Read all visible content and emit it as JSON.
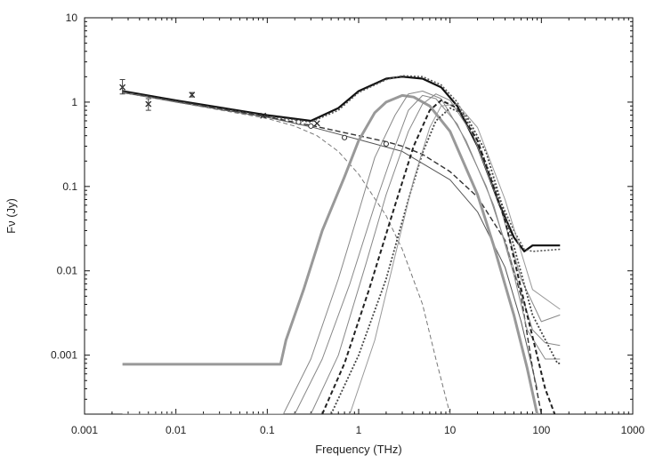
{
  "chart_data": {
    "type": "line",
    "title": "",
    "xlabel": "Frequency (THz)",
    "ylabel": "Fν (Jy)",
    "x_scale": "log",
    "y_scale": "log",
    "xlim": [
      0.001,
      1000
    ],
    "ylim": [
      0.0002,
      10
    ],
    "grid": false,
    "legend": "none",
    "x_ticks": [
      {
        "value": 0.001,
        "label": "0.001"
      },
      {
        "value": 0.01,
        "label": "0.01"
      },
      {
        "value": 0.1,
        "label": "0.1"
      },
      {
        "value": 1,
        "label": "1"
      },
      {
        "value": 10,
        "label": "10"
      },
      {
        "value": 100,
        "label": "100"
      },
      {
        "value": 1000,
        "label": "1000"
      }
    ],
    "y_ticks": [
      {
        "value": 0.001,
        "label": "0.001"
      },
      {
        "value": 0.01,
        "label": "0.01"
      },
      {
        "value": 0.1,
        "label": "0.1"
      },
      {
        "value": 1,
        "label": "1"
      },
      {
        "value": 10,
        "label": "10"
      }
    ],
    "observations": {
      "crosses": [
        {
          "x": 0.0026,
          "y": 1.5,
          "err": [
            1.25,
            1.85
          ]
        },
        {
          "x": 0.005,
          "y": 0.95,
          "err": [
            0.8,
            1.1
          ]
        },
        {
          "x": 0.015,
          "y": 1.22,
          "err": [
            1.15,
            1.3
          ]
        },
        {
          "x": 0.09,
          "y": 0.69
        },
        {
          "x": 0.35,
          "y": 0.56
        }
      ],
      "circles": [
        {
          "x": 0.22,
          "y": 0.58
        },
        {
          "x": 0.3,
          "y": 0.52
        },
        {
          "x": 0.7,
          "y": 0.38
        },
        {
          "x": 2.0,
          "y": 0.32
        }
      ]
    },
    "series": [
      {
        "style": "solid-thick",
        "color": "#111111",
        "points": [
          [
            0.0026,
            1.35
          ],
          [
            0.01,
            1.05
          ],
          [
            0.1,
            0.7
          ],
          [
            0.3,
            0.6
          ],
          [
            0.6,
            0.85
          ],
          [
            1,
            1.35
          ],
          [
            2,
            1.9
          ],
          [
            3,
            2.0
          ],
          [
            5,
            1.9
          ],
          [
            8,
            1.5
          ],
          [
            12,
            0.9
          ],
          [
            20,
            0.3
          ],
          [
            35,
            0.06
          ],
          [
            50,
            0.025
          ],
          [
            65,
            0.017
          ],
          [
            80,
            0.02
          ],
          [
            160,
            0.02
          ]
        ]
      },
      {
        "style": "dotted",
        "color": "#555555",
        "points": [
          [
            0.0026,
            1.3
          ],
          [
            0.01,
            1.02
          ],
          [
            0.1,
            0.68
          ],
          [
            0.3,
            0.58
          ],
          [
            0.6,
            0.8
          ],
          [
            1,
            1.3
          ],
          [
            2,
            1.85
          ],
          [
            3,
            2.05
          ],
          [
            5,
            2.0
          ],
          [
            8,
            1.6
          ],
          [
            12,
            1.0
          ],
          [
            20,
            0.35
          ],
          [
            35,
            0.07
          ],
          [
            50,
            0.03
          ],
          [
            65,
            0.018
          ],
          [
            80,
            0.017
          ],
          [
            160,
            0.018
          ]
        ]
      },
      {
        "style": "dashed",
        "color": "#333333",
        "points": [
          [
            0.0026,
            1.33
          ],
          [
            0.01,
            1.03
          ],
          [
            0.1,
            0.67
          ],
          [
            0.3,
            0.53
          ],
          [
            1,
            0.4
          ],
          [
            2,
            0.34
          ],
          [
            3,
            0.3
          ],
          [
            5,
            0.24
          ],
          [
            10,
            0.15
          ],
          [
            20,
            0.075
          ],
          [
            40,
            0.023
          ],
          [
            60,
            0.005
          ],
          [
            80,
            0.0007
          ],
          [
            100,
            0.0002
          ]
        ]
      },
      {
        "style": "solid",
        "color": "#555555",
        "points": [
          [
            0.0026,
            1.3
          ],
          [
            0.01,
            1.0
          ],
          [
            0.1,
            0.66
          ],
          [
            0.3,
            0.51
          ],
          [
            1,
            0.36
          ],
          [
            3,
            0.26
          ],
          [
            10,
            0.12
          ],
          [
            20,
            0.05
          ],
          [
            40,
            0.011
          ],
          [
            60,
            0.0025
          ],
          [
            90,
            0.0004
          ]
        ]
      },
      {
        "style": "dashed-thin",
        "color": "#777777",
        "points": [
          [
            0.0026,
            1.32
          ],
          [
            0.01,
            1.0
          ],
          [
            0.1,
            0.64
          ],
          [
            0.2,
            0.52
          ],
          [
            0.35,
            0.4
          ],
          [
            0.6,
            0.26
          ],
          [
            1,
            0.14
          ],
          [
            2,
            0.045
          ],
          [
            3,
            0.018
          ],
          [
            5,
            0.004
          ],
          [
            7,
            0.0009
          ],
          [
            10,
            0.0002
          ]
        ]
      },
      {
        "style": "solid-gray-thick",
        "color": "#999999",
        "points": [
          [
            0.0026,
            0.00078
          ],
          [
            0.14,
            0.00078
          ],
          [
            0.16,
            0.0015
          ],
          [
            0.25,
            0.006
          ],
          [
            0.4,
            0.03
          ],
          [
            0.7,
            0.13
          ],
          [
            1,
            0.35
          ],
          [
            1.5,
            0.75
          ],
          [
            2,
            1.0
          ],
          [
            3,
            1.2
          ],
          [
            4,
            1.15
          ],
          [
            6,
            0.9
          ],
          [
            10,
            0.45
          ],
          [
            20,
            0.08
          ],
          [
            30,
            0.02
          ],
          [
            50,
            0.003
          ],
          [
            70,
            0.0007
          ],
          [
            90,
            0.0002
          ]
        ]
      },
      {
        "style": "solid",
        "color": "#888888",
        "points": [
          [
            0.0026,
            0.0002
          ],
          [
            0.15,
            0.0002
          ],
          [
            0.3,
            0.0009
          ],
          [
            0.6,
            0.008
          ],
          [
            1,
            0.05
          ],
          [
            1.5,
            0.22
          ],
          [
            2.5,
            0.7
          ],
          [
            3.5,
            1.25
          ],
          [
            5,
            1.35
          ],
          [
            8,
            1.1
          ],
          [
            15,
            0.35
          ],
          [
            30,
            0.06
          ],
          [
            50,
            0.009
          ],
          [
            70,
            0.002
          ],
          [
            110,
            0.0009
          ],
          [
            160,
            0.0009
          ]
        ]
      },
      {
        "style": "solid",
        "color": "#888888",
        "points": [
          [
            0.2,
            0.0002
          ],
          [
            0.4,
            0.0009
          ],
          [
            0.8,
            0.007
          ],
          [
            1.5,
            0.06
          ],
          [
            2.5,
            0.3
          ],
          [
            3.5,
            0.8
          ],
          [
            5,
            1.2
          ],
          [
            7,
            1.1
          ],
          [
            12,
            0.55
          ],
          [
            25,
            0.1
          ],
          [
            45,
            0.015
          ],
          [
            80,
            0.002
          ],
          [
            110,
            0.0014
          ],
          [
            160,
            0.0013
          ]
        ]
      },
      {
        "style": "solid",
        "color": "#888888",
        "points": [
          [
            0.3,
            0.0002
          ],
          [
            0.6,
            0.001
          ],
          [
            1.2,
            0.012
          ],
          [
            2,
            0.08
          ],
          [
            3.5,
            0.45
          ],
          [
            5,
            0.95
          ],
          [
            7,
            1.25
          ],
          [
            10,
            1.05
          ],
          [
            18,
            0.4
          ],
          [
            35,
            0.06
          ],
          [
            60,
            0.008
          ],
          [
            100,
            0.0025
          ],
          [
            160,
            0.003
          ]
        ]
      },
      {
        "style": "dashed-dark",
        "color": "#222222",
        "points": [
          [
            0.4,
            0.0002
          ],
          [
            0.7,
            0.0008
          ],
          [
            1.3,
            0.006
          ],
          [
            2.5,
            0.06
          ],
          [
            4,
            0.3
          ],
          [
            6,
            0.8
          ],
          [
            8,
            1.05
          ],
          [
            12,
            0.85
          ],
          [
            20,
            0.35
          ],
          [
            40,
            0.04
          ],
          [
            70,
            0.003
          ],
          [
            110,
            0.0004
          ],
          [
            140,
            0.0002
          ]
        ]
      },
      {
        "style": "dotted-dark",
        "color": "#444444",
        "points": [
          [
            0.5,
            0.0002
          ],
          [
            1,
            0.001
          ],
          [
            2,
            0.008
          ],
          [
            3.5,
            0.07
          ],
          [
            5,
            0.25
          ],
          [
            7,
            0.6
          ],
          [
            10,
            0.85
          ],
          [
            15,
            0.7
          ],
          [
            25,
            0.25
          ],
          [
            45,
            0.03
          ],
          [
            80,
            0.003
          ],
          [
            150,
            0.0008
          ],
          [
            160,
            0.0008
          ]
        ]
      },
      {
        "style": "solid",
        "color": "#999999",
        "points": [
          [
            0.8,
            0.0002
          ],
          [
            1.5,
            0.0015
          ],
          [
            2.5,
            0.015
          ],
          [
            4,
            0.12
          ],
          [
            6,
            0.5
          ],
          [
            8,
            0.9
          ],
          [
            12,
            0.95
          ],
          [
            20,
            0.5
          ],
          [
            40,
            0.07
          ],
          [
            80,
            0.006
          ],
          [
            160,
            0.0035
          ]
        ]
      }
    ]
  }
}
